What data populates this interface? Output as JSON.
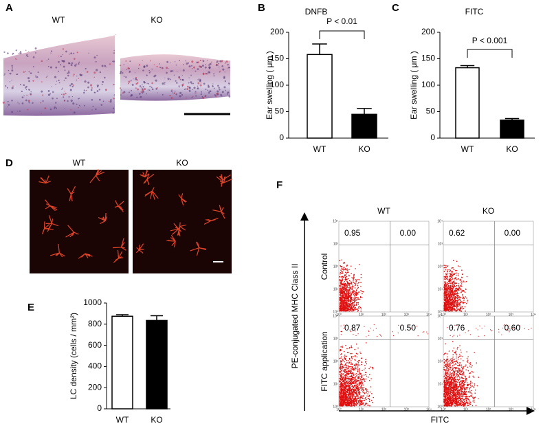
{
  "panels": {
    "A": {
      "label": "A",
      "groups": [
        "WT",
        "KO"
      ]
    },
    "D": {
      "label": "D",
      "groups": [
        "WT",
        "KO"
      ]
    }
  },
  "chart_data": [
    {
      "type": "bar",
      "label": "B",
      "title": "DNFB",
      "y_label": "Ear swelling ( μm )",
      "categories": [
        "WT",
        "KO"
      ],
      "values": [
        158,
        45
      ],
      "errors": [
        20,
        11
      ],
      "colors": [
        "#ffffff",
        "#000000"
      ],
      "ylim": [
        0,
        200
      ],
      "yticks": [
        0,
        50,
        100,
        150,
        200
      ],
      "annotation": "P < 0.01"
    },
    {
      "type": "bar",
      "label": "C",
      "title": "FITC",
      "y_label": "Ear swelling ( μm )",
      "categories": [
        "WT",
        "KO"
      ],
      "values": [
        133,
        34
      ],
      "errors": [
        4,
        3
      ],
      "colors": [
        "#ffffff",
        "#000000"
      ],
      "ylim": [
        0,
        200
      ],
      "yticks": [
        0,
        50,
        100,
        150,
        200
      ],
      "annotation": "P < 0.001"
    },
    {
      "type": "bar",
      "label": "E",
      "y_label": "LC density (cells / mm²)",
      "categories": [
        "WT",
        "KO"
      ],
      "values": [
        875,
        835
      ],
      "errors": [
        15,
        45
      ],
      "colors": [
        "#ffffff",
        "#000000"
      ],
      "ylim": [
        0,
        1000
      ],
      "yticks": [
        0,
        200,
        400,
        600,
        800,
        1000
      ]
    }
  ],
  "flow": {
    "label": "F",
    "columns": [
      "WT",
      "KO"
    ],
    "rows": [
      "Control",
      "FITC application"
    ],
    "y_label": "PE-conjugated MHC Class II",
    "x_label": "FITC",
    "log_ticks": [
      "10⁰",
      "10¹",
      "10²",
      "10³",
      "10⁴"
    ],
    "quadrants": [
      [
        [
          "0.95",
          "0.00"
        ],
        [
          "0.62",
          "0.00"
        ]
      ],
      [
        [
          "0.87",
          "0.50"
        ],
        [
          "0.76",
          "0.60"
        ]
      ]
    ]
  }
}
